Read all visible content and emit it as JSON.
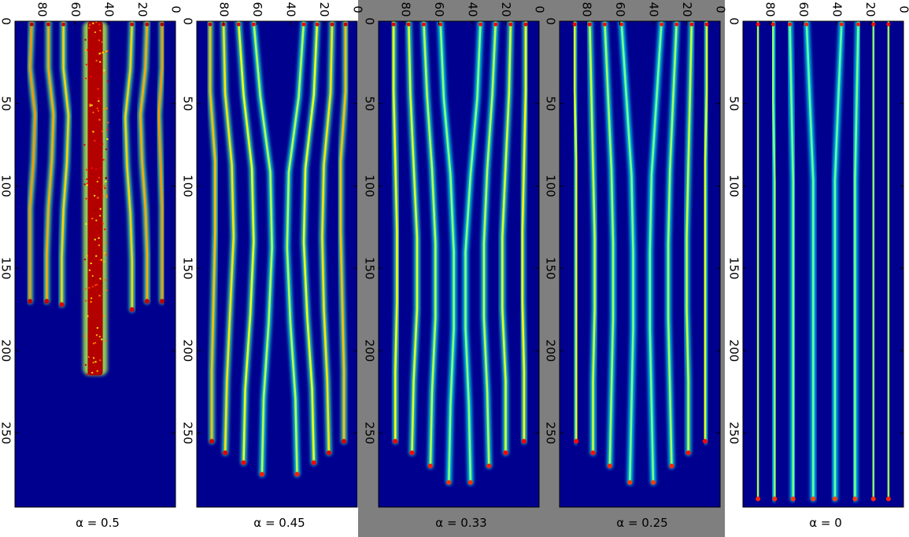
{
  "chart_data": [
    {
      "type": "heatmap",
      "title": "α = 0.5",
      "xlabel": "",
      "ylabel": "",
      "x_ticks": [
        "0",
        "50",
        "100",
        "150",
        "200",
        "250"
      ],
      "y_ticks": [
        "80",
        "60",
        "40",
        "20",
        "0"
      ],
      "x_range": [
        0,
        295
      ],
      "y_range": [
        0,
        96
      ],
      "colormap": "jet",
      "background": "#00008f",
      "stripes": [
        {
          "pos": [
            8,
            8,
            10,
            9,
            8,
            8,
            8
          ],
          "end": 170,
          "intensity": 0.95
        },
        {
          "pos": [
            17,
            18,
            21,
            20,
            18,
            17,
            17
          ],
          "end": 170,
          "intensity": 0.9
        },
        {
          "pos": [
            26,
            27,
            30,
            29,
            27,
            26,
            26
          ],
          "end": 175,
          "intensity": 0.8
        },
        {
          "pos": [
            67,
            67,
            64,
            65,
            67,
            68,
            68
          ],
          "end": 172,
          "intensity": 0.8
        },
        {
          "pos": [
            76,
            76,
            73,
            74,
            76,
            77,
            77
          ],
          "end": 170,
          "intensity": 0.9
        },
        {
          "pos": [
            86,
            87,
            84,
            85,
            87,
            87,
            87
          ],
          "end": 170,
          "intensity": 0.95
        }
      ],
      "core": {
        "center": 48,
        "width": 9,
        "start": 0,
        "end": 215,
        "intensity": 1.0
      }
    },
    {
      "type": "heatmap",
      "title": "α = 0.45",
      "xlabel": "",
      "ylabel": "",
      "x_ticks": [
        "0",
        "50",
        "100",
        "150",
        "200",
        "250"
      ],
      "y_ticks": [
        "80",
        "60",
        "40",
        "20",
        "0"
      ],
      "x_range": [
        0,
        295
      ],
      "y_range": [
        0,
        96
      ],
      "colormap": "jet",
      "background": "#00008f",
      "stripes": [
        {
          "pos": [
            7,
            7,
            10,
            10,
            9,
            8,
            8
          ],
          "end": 255,
          "intensity": 0.85
        },
        {
          "pos": [
            15,
            16,
            20,
            21,
            20,
            18,
            17
          ],
          "end": 262,
          "intensity": 0.75
        },
        {
          "pos": [
            24,
            26,
            31,
            32,
            30,
            27,
            26
          ],
          "end": 268,
          "intensity": 0.65
        },
        {
          "pos": [
            32,
            35,
            41,
            42,
            40,
            37,
            36
          ],
          "end": 275,
          "intensity": 0.5
        },
        {
          "pos": [
            62,
            58,
            52,
            51,
            53,
            56,
            57
          ],
          "end": 275,
          "intensity": 0.5
        },
        {
          "pos": [
            71,
            68,
            63,
            62,
            64,
            67,
            68
          ],
          "end": 268,
          "intensity": 0.65
        },
        {
          "pos": [
            80,
            79,
            75,
            74,
            76,
            78,
            79
          ],
          "end": 262,
          "intensity": 0.75
        },
        {
          "pos": [
            88,
            88,
            85,
            85,
            86,
            87,
            87
          ],
          "end": 255,
          "intensity": 0.85
        }
      ],
      "core": null
    },
    {
      "type": "heatmap",
      "title": "α = 0.33",
      "xlabel": "",
      "ylabel": "",
      "x_ticks": [
        "0",
        "50",
        "100",
        "150",
        "200",
        "250"
      ],
      "y_ticks": [
        "80",
        "60",
        "40",
        "20",
        "0"
      ],
      "x_range": [
        0,
        295
      ],
      "y_range": [
        0,
        96
      ],
      "colormap": "jet",
      "background": "#00008f",
      "stripes": [
        {
          "pos": [
            8,
            8,
            9,
            10,
            10,
            9,
            9
          ],
          "end": 255,
          "intensity": 0.7
        },
        {
          "pos": [
            17,
            18,
            20,
            22,
            22,
            20,
            20
          ],
          "end": 262,
          "intensity": 0.6
        },
        {
          "pos": [
            26,
            28,
            31,
            33,
            33,
            31,
            30
          ],
          "end": 270,
          "intensity": 0.5
        },
        {
          "pos": [
            35,
            37,
            41,
            44,
            44,
            42,
            41
          ],
          "end": 280,
          "intensity": 0.4
        },
        {
          "pos": [
            59,
            57,
            53,
            51,
            51,
            53,
            54
          ],
          "end": 280,
          "intensity": 0.4
        },
        {
          "pos": [
            69,
            67,
            64,
            62,
            62,
            64,
            65
          ],
          "end": 270,
          "intensity": 0.5
        },
        {
          "pos": [
            78,
            77,
            75,
            73,
            73,
            75,
            76
          ],
          "end": 262,
          "intensity": 0.6
        },
        {
          "pos": [
            87,
            87,
            86,
            85,
            85,
            86,
            86
          ],
          "end": 255,
          "intensity": 0.7
        }
      ],
      "core": null
    },
    {
      "type": "heatmap",
      "title": "α = 0.25",
      "xlabel": "",
      "ylabel": "",
      "x_ticks": [
        "0",
        "50",
        "100",
        "150",
        "200",
        "250"
      ],
      "y_ticks": [
        "80",
        "60",
        "40",
        "20",
        "0"
      ],
      "x_range": [
        0,
        295
      ],
      "y_range": [
        0,
        96
      ],
      "colormap": "jet",
      "background": "#00008f",
      "stripes": [
        {
          "pos": [
            8,
            8,
            9,
            9,
            9,
            9,
            9
          ],
          "end": 255,
          "intensity": 0.6
        },
        {
          "pos": [
            17,
            18,
            19,
            20,
            20,
            19,
            19
          ],
          "end": 262,
          "intensity": 0.55
        },
        {
          "pos": [
            26,
            28,
            30,
            31,
            31,
            30,
            29
          ],
          "end": 270,
          "intensity": 0.45
        },
        {
          "pos": [
            35,
            38,
            41,
            42,
            42,
            41,
            40
          ],
          "end": 280,
          "intensity": 0.35
        },
        {
          "pos": [
            59,
            56,
            53,
            52,
            52,
            53,
            54
          ],
          "end": 280,
          "intensity": 0.35
        },
        {
          "pos": [
            69,
            67,
            65,
            64,
            64,
            65,
            66
          ],
          "end": 270,
          "intensity": 0.45
        },
        {
          "pos": [
            78,
            77,
            76,
            75,
            75,
            76,
            76
          ],
          "end": 262,
          "intensity": 0.55
        },
        {
          "pos": [
            87,
            87,
            86,
            86,
            86,
            86,
            86
          ],
          "end": 255,
          "intensity": 0.6
        }
      ],
      "core": null
    },
    {
      "type": "heatmap",
      "title": "α = 0",
      "xlabel": "",
      "ylabel": "",
      "x_ticks": [
        "0",
        "50",
        "100",
        "150",
        "200",
        "250"
      ],
      "y_ticks": [
        "80",
        "60",
        "40",
        "20",
        "0"
      ],
      "x_range": [
        0,
        295
      ],
      "y_range": [
        0,
        96
      ],
      "colormap": "jet",
      "background": "#00008f",
      "stripes": [
        {
          "pos": [
            9,
            9,
            9,
            9,
            9,
            9,
            9
          ],
          "end": 290,
          "intensity": 0.45
        },
        {
          "pos": [
            18,
            18,
            18,
            18,
            18,
            18,
            18
          ],
          "end": 290,
          "intensity": 0.4
        },
        {
          "pos": [
            27,
            28,
            29,
            29,
            29,
            29,
            29
          ],
          "end": 290,
          "intensity": 0.35
        },
        {
          "pos": [
            37,
            39,
            41,
            41,
            41,
            41,
            41
          ],
          "end": 290,
          "intensity": 0.3
        },
        {
          "pos": [
            58,
            56,
            54,
            54,
            54,
            54,
            54
          ],
          "end": 290,
          "intensity": 0.3
        },
        {
          "pos": [
            68,
            67,
            66,
            66,
            66,
            66,
            66
          ],
          "end": 290,
          "intensity": 0.35
        },
        {
          "pos": [
            78,
            78,
            77,
            77,
            77,
            77,
            77
          ],
          "end": 290,
          "intensity": 0.4
        },
        {
          "pos": [
            87,
            87,
            87,
            87,
            87,
            87,
            87
          ],
          "end": 290,
          "intensity": 0.45
        }
      ],
      "core": null
    }
  ]
}
